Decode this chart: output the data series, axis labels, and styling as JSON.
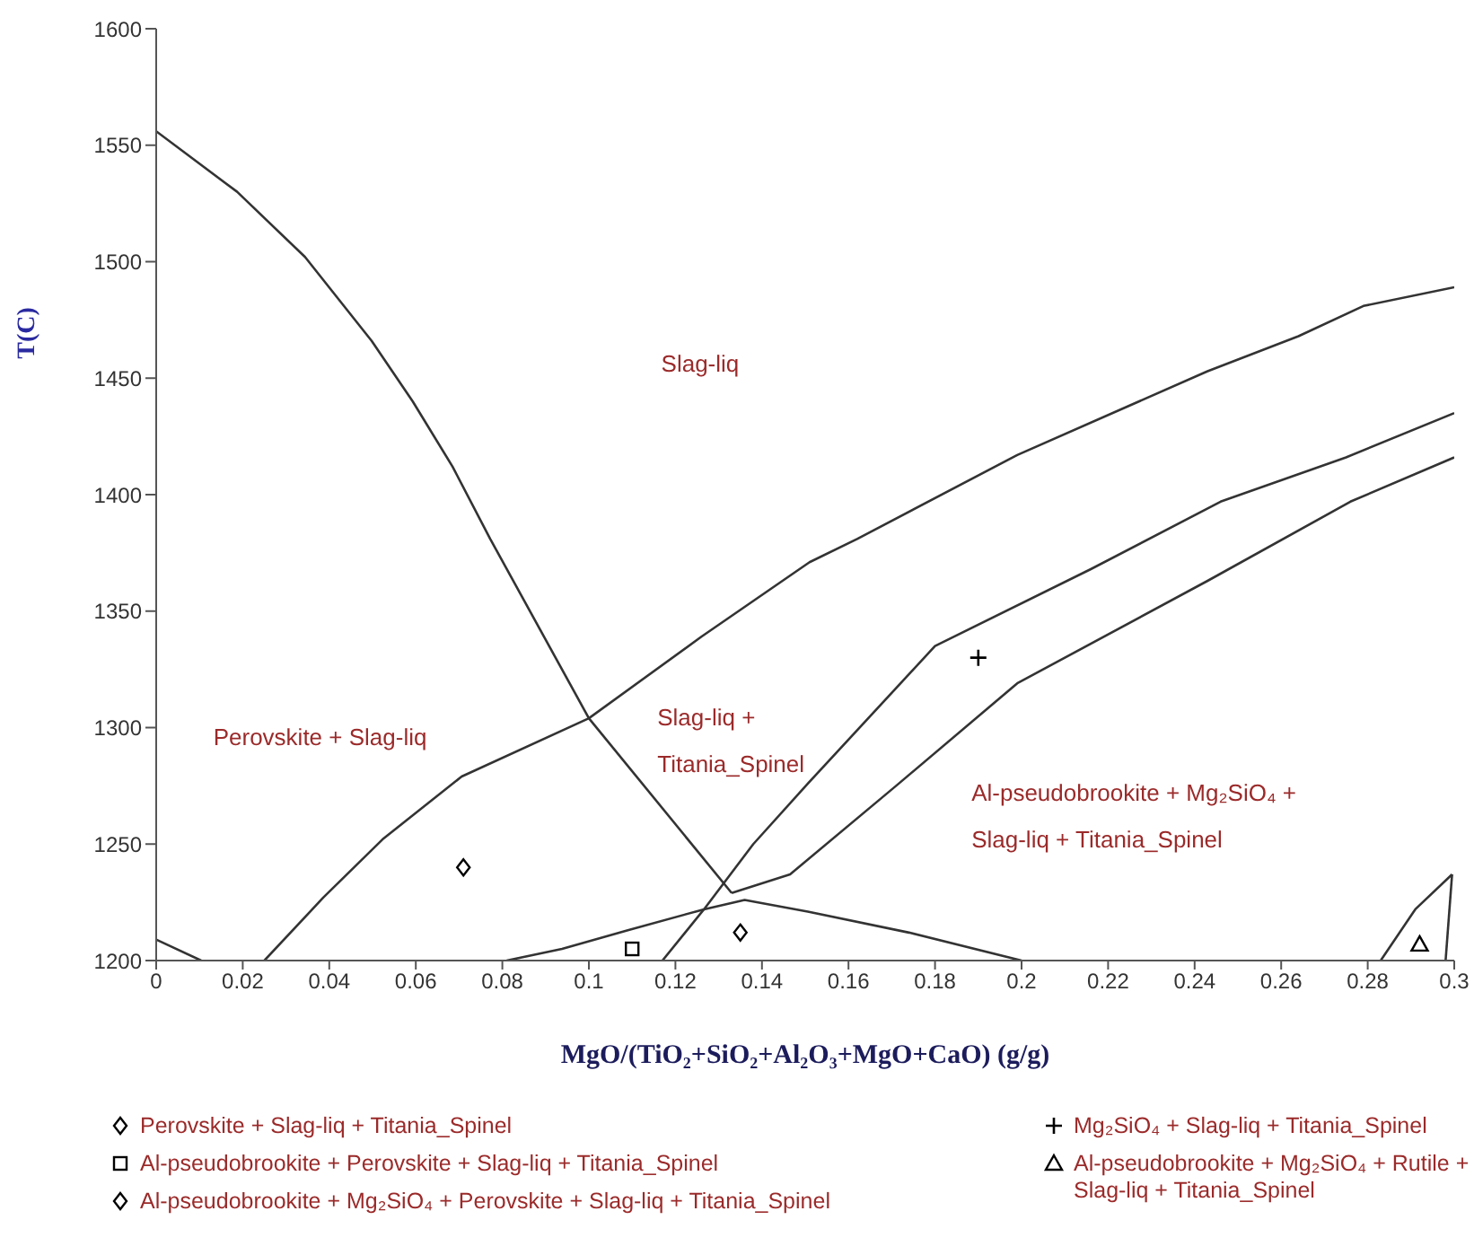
{
  "chart_data": {
    "type": "line",
    "xlabel": "MgO/(TiO₂+SiO₂+Al₂O₃+MgO+CaO) (g/g)",
    "ylabel": "T(C)",
    "xlim": [
      0,
      0.3
    ],
    "xticks": [
      0,
      0.02,
      0.04,
      0.06,
      0.08,
      0.1,
      0.12,
      0.14,
      0.16,
      0.18,
      0.2,
      0.22,
      0.24,
      0.26,
      0.28,
      0.3
    ],
    "ylim": [
      1200,
      1600
    ],
    "yticks": [
      1200,
      1250,
      1300,
      1350,
      1400,
      1450,
      1500,
      1550,
      1600
    ],
    "grid": false,
    "legend": "bottom",
    "line_style": "solid",
    "series": [
      {
        "color": "#333333",
        "x": [
          0,
          0.0187,
          0.0344,
          0.0498,
          0.0593,
          0.0685,
          0.0772,
          0.1,
          0.133
        ],
        "values": [
          1556,
          1530,
          1502,
          1466,
          1440,
          1412,
          1381,
          1304,
          1229
        ]
      },
      {
        "color": "#333333",
        "x": [
          0,
          0.0104
        ],
        "values": [
          1209,
          1200
        ]
      },
      {
        "color": "#333333",
        "x": [
          0.025,
          0.0386,
          0.0523,
          0.0706,
          0.1,
          0.126,
          0.151,
          0.162,
          0.199,
          0.243,
          0.264,
          0.279,
          0.3
        ],
        "values": [
          1200,
          1227,
          1252,
          1279,
          1304,
          1339,
          1371,
          1381,
          1417,
          1453,
          1468,
          1481,
          1489
        ]
      },
      {
        "color": "#333333",
        "x": [
          0.117,
          0.1266,
          0.138,
          0.1506,
          0.18,
          0.216,
          0.246,
          0.275,
          0.3
        ],
        "values": [
          1200,
          1222,
          1250,
          1276,
          1335,
          1368,
          1397,
          1416,
          1435
        ]
      },
      {
        "color": "#333333",
        "x": [
          0.133,
          0.1465,
          0.171,
          0.199,
          0.243,
          0.276,
          0.3
        ],
        "values": [
          1229,
          1237,
          1275,
          1319,
          1363,
          1397,
          1416
        ]
      },
      {
        "color": "#333333",
        "x": [
          0.081,
          0.0938,
          0.109,
          0.1266,
          0.136,
          0.1506,
          0.174,
          0.2
        ],
        "values": [
          1200,
          1205,
          1213,
          1222,
          1226,
          1221,
          1212,
          1200
        ]
      },
      {
        "color": "#333333",
        "x": [
          0.283,
          0.291,
          0.2995
        ],
        "values": [
          1200,
          1222,
          1237
        ]
      },
      {
        "color": "#333333",
        "x": [
          0.298,
          0.2995
        ],
        "values": [
          1200,
          1237
        ]
      },
      {
        "type": "scatter",
        "name": "Perovskite + Slag-liq + Titania_Spinel",
        "color": "#000000",
        "marker": "diamond",
        "x": [
          0.071
        ],
        "values": [
          1240
        ]
      },
      {
        "type": "scatter",
        "name": "Al-pseudobrookite + Perovskite + Slag-liq + Titania_Spinel",
        "color": "#000000",
        "marker": "square",
        "x": [
          0.11
        ],
        "values": [
          1205
        ]
      },
      {
        "type": "scatter",
        "name": "Al-pseudobrookite + Mg₂SiO₄ + Perovskite + Slag-liq + Titania_Spinel",
        "color": "#000000",
        "marker": "diamond",
        "x": [
          0.135
        ],
        "values": [
          1212
        ]
      },
      {
        "type": "scatter",
        "name": "Mg₂SiO₄ + Slag-liq + Titania_Spinel",
        "color": "#000000",
        "marker": "cross",
        "x": [
          0.19
        ],
        "values": [
          1330
        ]
      },
      {
        "type": "scatter",
        "name": "Al-pseudobrookite + Mg₂SiO₄ + Rutile + Slag-liq + Titania_Spinel",
        "color": "#000000",
        "marker": "triangle",
        "x": [
          0.292
        ],
        "values": [
          1207
        ]
      }
    ],
    "annotations": [
      "Slag-liq",
      "Perovskite + Slag-liq",
      "Slag-liq +\nTitania_Spinel",
      "Al-pseudobrookite + Mg₂SiO₄ +\nSlag-liq + Titania_Spinel"
    ]
  }
}
